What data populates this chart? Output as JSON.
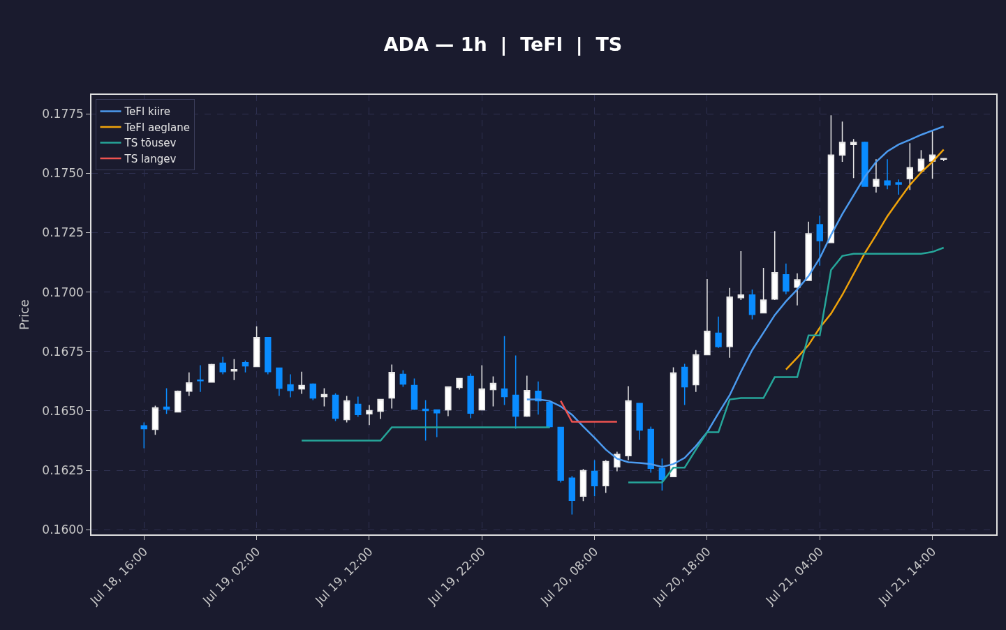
{
  "chart_data": {
    "type": "candlestick",
    "title": "ADA — 1h  |  TeFl  |  TS",
    "ylabel": "Price",
    "x": [
      "--07-18T16:00",
      "--07-18T17:00",
      "--07-18T18:00",
      "--07-18T19:00",
      "--07-18T20:00",
      "--07-18T21:00",
      "--07-18T22:00",
      "--07-18T23:00",
      "--07-19T00:00",
      "--07-19T01:00",
      "--07-19T02:00",
      "--07-19T03:00",
      "--07-19T04:00",
      "--07-19T05:00",
      "--07-19T06:00",
      "--07-19T07:00",
      "--07-19T08:00",
      "--07-19T09:00",
      "--07-19T10:00",
      "--07-19T11:00",
      "--07-19T12:00",
      "--07-19T13:00",
      "--07-19T14:00",
      "--07-19T15:00",
      "--07-19T16:00",
      "--07-19T17:00",
      "--07-19T18:00",
      "--07-19T19:00",
      "--07-19T20:00",
      "--07-19T21:00",
      "--07-19T22:00",
      "--07-19T23:00",
      "--07-20T00:00",
      "--07-20T01:00",
      "--07-20T02:00",
      "--07-20T03:00",
      "--07-20T04:00",
      "--07-20T05:00",
      "--07-20T06:00",
      "--07-20T07:00",
      "--07-20T08:00",
      "--07-20T09:00",
      "--07-20T10:00",
      "--07-20T11:00",
      "--07-20T12:00",
      "--07-20T13:00",
      "--07-20T14:00",
      "--07-20T15:00",
      "--07-20T16:00",
      "--07-20T17:00",
      "--07-20T18:00",
      "--07-20T19:00",
      "--07-20T20:00",
      "--07-20T21:00",
      "--07-20T22:00",
      "--07-20T23:00",
      "--07-21T00:00",
      "--07-21T01:00",
      "--07-21T02:00",
      "--07-21T03:00",
      "--07-21T04:00",
      "--07-21T05:00",
      "--07-21T06:00",
      "--07-21T07:00",
      "--07-21T08:00",
      "--07-21T09:00",
      "--07-21T10:00",
      "--07-21T11:00",
      "--07-21T12:00",
      "--07-21T13:00",
      "--07-21T14:00",
      "--07-21T15:00"
    ],
    "ohlc": [
      [
        0.16437,
        0.16451,
        0.16343,
        0.16425
      ],
      [
        0.16422,
        0.16522,
        0.16399,
        0.16513
      ],
      [
        0.16516,
        0.16595,
        0.16487,
        0.16507
      ],
      [
        0.16495,
        0.16586,
        0.16495,
        0.16583
      ],
      [
        0.16583,
        0.16662,
        0.16563,
        0.16618
      ],
      [
        0.1663,
        0.16692,
        0.1658,
        0.16627
      ],
      [
        0.16621,
        0.16698,
        0.16621,
        0.16695
      ],
      [
        0.16701,
        0.16727,
        0.16654,
        0.16665
      ],
      [
        0.16668,
        0.16718,
        0.1663,
        0.16674
      ],
      [
        0.16703,
        0.16712,
        0.16662,
        0.16689
      ],
      [
        0.16686,
        0.16856,
        0.16686,
        0.16809
      ],
      [
        0.16809,
        0.16809,
        0.16654,
        0.16665
      ],
      [
        0.1668,
        0.1668,
        0.16563,
        0.16595
      ],
      [
        0.1661,
        0.16654,
        0.16557,
        0.16586
      ],
      [
        0.16592,
        0.16665,
        0.16572,
        0.16607
      ],
      [
        0.16613,
        0.16616,
        0.16545,
        0.16554
      ],
      [
        0.1656,
        0.16595,
        0.16519,
        0.16569
      ],
      [
        0.16566,
        0.16574,
        0.16457,
        0.16469
      ],
      [
        0.16463,
        0.16563,
        0.16451,
        0.16542
      ],
      [
        0.16528,
        0.1656,
        0.16475,
        0.16484
      ],
      [
        0.16487,
        0.16525,
        0.1644,
        0.16501
      ],
      [
        0.16498,
        0.16548,
        0.16466,
        0.16548
      ],
      [
        0.16554,
        0.16695,
        0.1651,
        0.16662
      ],
      [
        0.16654,
        0.16671,
        0.16601,
        0.16613
      ],
      [
        0.16607,
        0.16636,
        0.16504,
        0.16507
      ],
      [
        0.16507,
        0.16545,
        0.16375,
        0.16501
      ],
      [
        0.16504,
        0.16504,
        0.1639,
        0.16492
      ],
      [
        0.16504,
        0.16601,
        0.16478,
        0.16601
      ],
      [
        0.16598,
        0.16636,
        0.16589,
        0.16636
      ],
      [
        0.16645,
        0.16657,
        0.16469,
        0.1649
      ],
      [
        0.16504,
        0.16692,
        0.16504,
        0.16592
      ],
      [
        0.16589,
        0.16645,
        0.16519,
        0.16616
      ],
      [
        0.16592,
        0.16815,
        0.16525,
        0.1656
      ],
      [
        0.16566,
        0.16733,
        0.16425,
        0.16478
      ],
      [
        0.16478,
        0.16648,
        0.16475,
        0.16586
      ],
      [
        0.16583,
        0.16624,
        0.16484,
        0.16542
      ],
      [
        0.16536,
        0.16536,
        0.16428,
        0.16434
      ],
      [
        0.16431,
        0.16431,
        0.16199,
        0.16208
      ],
      [
        0.16217,
        0.16226,
        0.16064,
        0.16123
      ],
      [
        0.16141,
        0.16255,
        0.1612,
        0.16249
      ],
      [
        0.16246,
        0.16293,
        0.16141,
        0.16185
      ],
      [
        0.16185,
        0.16293,
        0.16155,
        0.16287
      ],
      [
        0.16264,
        0.16328,
        0.16246,
        0.16317
      ],
      [
        0.16311,
        0.16604,
        0.16293,
        0.16542
      ],
      [
        0.16531,
        0.16531,
        0.16378,
        0.16419
      ],
      [
        0.16422,
        0.16434,
        0.1624,
        0.16258
      ],
      [
        0.16258,
        0.16299,
        0.16164,
        0.16211
      ],
      [
        0.16223,
        0.16683,
        0.16223,
        0.1666
      ],
      [
        0.16683,
        0.16698,
        0.16525,
        0.16601
      ],
      [
        0.1661,
        0.16756,
        0.1658,
        0.16736
      ],
      [
        0.16736,
        0.17055,
        0.16736,
        0.16835
      ],
      [
        0.16827,
        0.16897,
        0.16765,
        0.16771
      ],
      [
        0.16771,
        0.17017,
        0.16724,
        0.16979
      ],
      [
        0.16976,
        0.17172,
        0.16967,
        0.16988
      ],
      [
        0.16988,
        0.17011,
        0.16885,
        0.16906
      ],
      [
        0.16912,
        0.17102,
        0.16912,
        0.16967
      ],
      [
        0.1697,
        0.17257,
        0.16967,
        0.17082
      ],
      [
        0.17073,
        0.1712,
        0.16991,
        0.17005
      ],
      [
        0.1702,
        0.17079,
        0.16944,
        0.17052
      ],
      [
        0.17049,
        0.17296,
        0.17049,
        0.17246
      ],
      [
        0.17284,
        0.17322,
        0.17111,
        0.17216
      ],
      [
        0.17208,
        0.17744,
        0.17208,
        0.17577
      ],
      [
        0.17577,
        0.17718,
        0.17548,
        0.1763
      ],
      [
        0.17621,
        0.17644,
        0.1748,
        0.1763
      ],
      [
        0.1763,
        0.17633,
        0.17445,
        0.17445
      ],
      [
        0.17445,
        0.17559,
        0.17419,
        0.17474
      ],
      [
        0.17468,
        0.17559,
        0.17433,
        0.17451
      ],
      [
        0.1746,
        0.17474,
        0.1741,
        0.17454
      ],
      [
        0.17477,
        0.17627,
        0.1743,
        0.17524
      ],
      [
        0.1751,
        0.17597,
        0.1751,
        0.17559
      ],
      [
        0.17551,
        0.1768,
        0.17477,
        0.17577
      ],
      [
        0.17559,
        0.17562,
        0.17551,
        0.17562
      ]
    ],
    "series": [
      {
        "name": "TeFl kiire",
        "type": "line",
        "color": "#4c9bf0",
        "values": [
          null,
          null,
          null,
          null,
          null,
          null,
          null,
          null,
          null,
          null,
          null,
          null,
          null,
          null,
          null,
          null,
          null,
          null,
          null,
          null,
          null,
          null,
          null,
          null,
          null,
          null,
          null,
          null,
          null,
          null,
          null,
          null,
          null,
          null,
          0.16548,
          0.16548,
          0.16542,
          0.16519,
          0.16484,
          0.16434,
          0.16387,
          0.16337,
          0.16299,
          0.16284,
          0.16281,
          0.16276,
          0.16264,
          0.16276,
          0.16302,
          0.16352,
          0.1641,
          0.1649,
          0.16566,
          0.16665,
          0.16756,
          0.16829,
          0.16903,
          0.16961,
          0.17011,
          0.17067,
          0.17143,
          0.1724,
          0.17328,
          0.17407,
          0.17486,
          0.17548,
          0.17592,
          0.17621,
          0.17641,
          0.17662,
          0.1768,
          0.17697
        ]
      },
      {
        "name": "TeFl aeglane",
        "type": "line",
        "color": "#f0a30a",
        "values": [
          null,
          null,
          null,
          null,
          null,
          null,
          null,
          null,
          null,
          null,
          null,
          null,
          null,
          null,
          null,
          null,
          null,
          null,
          null,
          null,
          null,
          null,
          null,
          null,
          null,
          null,
          null,
          null,
          null,
          null,
          null,
          null,
          null,
          null,
          null,
          null,
          null,
          null,
          null,
          null,
          null,
          null,
          null,
          null,
          null,
          null,
          null,
          null,
          null,
          null,
          null,
          null,
          null,
          null,
          null,
          null,
          null,
          0.16674,
          0.16724,
          0.16777,
          0.1685,
          0.16909,
          0.16988,
          0.17076,
          0.17164,
          0.1724,
          0.17319,
          0.17386,
          0.17451,
          0.17504,
          0.17548,
          0.176
        ]
      },
      {
        "name": "TS tõusev",
        "type": "line",
        "color": "#26a69a",
        "values": [
          null,
          null,
          null,
          null,
          null,
          null,
          null,
          null,
          null,
          null,
          null,
          null,
          null,
          null,
          0.16375,
          0.16375,
          0.16375,
          0.16375,
          0.16375,
          0.16375,
          0.16375,
          0.16375,
          0.16431,
          0.16431,
          0.16431,
          0.16431,
          0.16431,
          0.16431,
          0.16431,
          0.16431,
          0.16431,
          0.16431,
          0.16431,
          0.16431,
          0.16431,
          0.16431,
          0.16431,
          null,
          null,
          null,
          null,
          null,
          null,
          0.16199,
          0.16199,
          0.16199,
          0.16199,
          0.16261,
          0.16261,
          0.16337,
          0.1641,
          0.1641,
          0.16548,
          0.16554,
          0.16554,
          0.16554,
          0.16642,
          0.16642,
          0.16642,
          0.16818,
          0.16818,
          0.17093,
          0.17152,
          0.17161,
          0.17161,
          0.17161,
          0.17161,
          0.17161,
          0.17161,
          0.17161,
          0.17169,
          0.17187
        ]
      },
      {
        "name": "TS langev",
        "type": "line",
        "color": "#ef5350",
        "values": [
          null,
          null,
          null,
          null,
          null,
          null,
          null,
          null,
          null,
          null,
          null,
          null,
          null,
          null,
          null,
          null,
          null,
          null,
          null,
          null,
          null,
          null,
          null,
          null,
          null,
          null,
          null,
          null,
          null,
          null,
          null,
          null,
          null,
          null,
          null,
          null,
          null,
          0.16542,
          0.16454,
          0.16454,
          0.16454,
          0.16454,
          0.16454,
          null,
          null,
          null,
          null,
          null,
          null,
          null,
          null,
          null,
          null,
          null,
          null,
          null,
          null,
          null,
          null,
          null,
          null,
          null,
          null,
          null,
          null,
          null,
          null,
          null,
          null,
          null,
          null,
          null
        ]
      }
    ],
    "xlim": [
      "--07-18T11:20",
      "--07-21T19:40"
    ],
    "xticks": [
      {
        "value": "--07-18T16:00",
        "label": "Jul 18, 16:00"
      },
      {
        "value": "--07-19T02:00",
        "label": "Jul 19, 02:00"
      },
      {
        "value": "--07-19T12:00",
        "label": "Jul 19, 12:00"
      },
      {
        "value": "--07-19T22:00",
        "label": "Jul 19, 22:00"
      },
      {
        "value": "--07-20T08:00",
        "label": "Jul 20, 08:00"
      },
      {
        "value": "--07-20T18:00",
        "label": "Jul 20, 18:00"
      },
      {
        "value": "--07-21T04:00",
        "label": "Jul 21, 04:00"
      },
      {
        "value": "--07-21T14:00",
        "label": "Jul 21, 14:00"
      }
    ],
    "ylim": [
      0.1598,
      0.1783
    ],
    "yticks": [
      {
        "value": 0.16,
        "label": "0.1600"
      },
      {
        "value": 0.1625,
        "label": "0.1625"
      },
      {
        "value": 0.165,
        "label": "0.1650"
      },
      {
        "value": 0.1675,
        "label": "0.1675"
      },
      {
        "value": 0.17,
        "label": "0.1700"
      },
      {
        "value": 0.1725,
        "label": "0.1725"
      },
      {
        "value": 0.175,
        "label": "0.1750"
      },
      {
        "value": 0.1775,
        "label": "0.1775"
      }
    ],
    "grid": true,
    "legend": "top left",
    "line_style": "solid",
    "marker": "none"
  }
}
